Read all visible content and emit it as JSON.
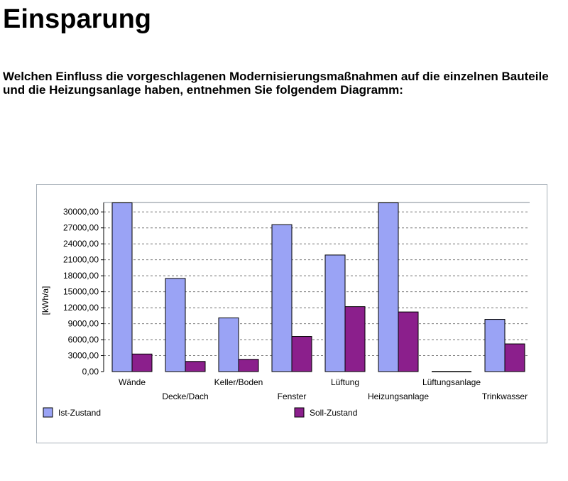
{
  "page": {
    "title": "Einsparung",
    "intro": "Welchen Einfluss die vorgeschlagenen Modernisierungsmaßnahmen auf die einzelnen Bauteile und die Heizungsanlage haben, entnehmen Sie folgendem Diagramm:"
  },
  "colors": {
    "ist": "#9aa3f5",
    "soll": "#8b1f8c",
    "grid": "#777777",
    "frame": "#a7b0b8"
  },
  "chart_data": {
    "type": "bar",
    "title": "",
    "xlabel": "",
    "ylabel": "[kWh/a]",
    "ylim": [
      0,
      31500
    ],
    "grid": true,
    "legend_position": "bottom",
    "yticks": [
      0,
      3000,
      6000,
      9000,
      12000,
      15000,
      18000,
      21000,
      24000,
      27000,
      30000
    ],
    "ytick_labels": [
      "0,00",
      "3000,00",
      "6000,00",
      "9000,00",
      "12000,00",
      "15000,00",
      "18000,00",
      "21000,00",
      "24000,00",
      "27000,00",
      "30000,00"
    ],
    "categories": [
      "Wände",
      "Decke/Dach",
      "Keller/Boden",
      "Fenster",
      "Lüftung",
      "Heizungsanlage",
      "Lüftungsanlage",
      "Trinkwasser"
    ],
    "series": [
      {
        "name": "Ist-Zustand",
        "values": [
          31700,
          17500,
          10100,
          27600,
          21900,
          31700,
          0,
          9800
        ]
      },
      {
        "name": "Soll-Zustand",
        "values": [
          3300,
          1900,
          2300,
          6600,
          12200,
          11200,
          0,
          5200
        ]
      }
    ]
  }
}
